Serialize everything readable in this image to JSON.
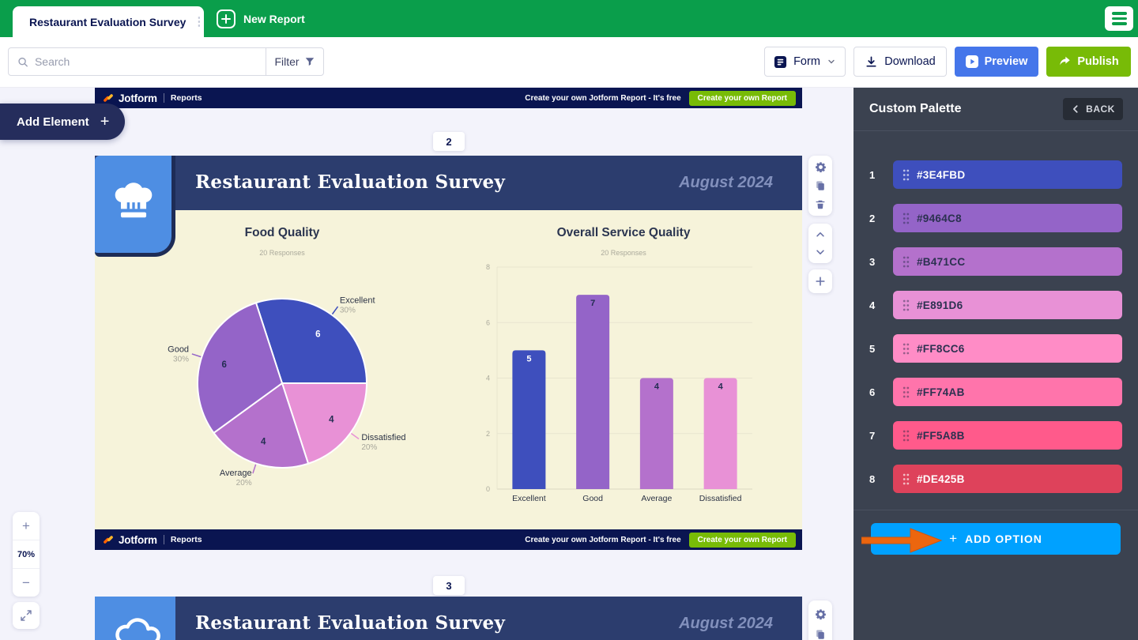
{
  "topbar": {
    "active_tab": "Restaurant Evaluation Survey",
    "new_tab": "New Report"
  },
  "toolbar": {
    "search_placeholder": "Search",
    "filter_label": "Filter",
    "form_label": "Form",
    "download_label": "Download",
    "preview_label": "Preview",
    "publish_label": "Publish"
  },
  "left_rail": {
    "add_element_label": "Add Element",
    "zoom_level": "70%"
  },
  "icons": {
    "plus": "+",
    "minus": "−",
    "dots_menu": "⋮"
  },
  "palette": {
    "title": "Custom Palette",
    "back_label": "BACK",
    "add_option_plus": "+",
    "add_option_label": "ADD OPTION",
    "colors": [
      {
        "n": "1",
        "hex": "#3E4FBD",
        "light_text": true
      },
      {
        "n": "2",
        "hex": "#9464C8",
        "light_text": false
      },
      {
        "n": "3",
        "hex": "#B471CC",
        "light_text": false
      },
      {
        "n": "4",
        "hex": "#E891D6",
        "light_text": false
      },
      {
        "n": "5",
        "hex": "#FF8CC6",
        "light_text": false
      },
      {
        "n": "6",
        "hex": "#FF74AB",
        "light_text": false
      },
      {
        "n": "7",
        "hex": "#FF5A8B",
        "light_text": false
      },
      {
        "n": "8",
        "hex": "#DE425B",
        "light_text": true
      }
    ]
  },
  "canvas": {
    "brand_name": "Jotform",
    "brand_section": "Reports",
    "promo_text": "Create your own Jotform Report - It's free",
    "promo_button": "Create your own Report",
    "page2_number": "2",
    "page3_number": "3",
    "report_title": "Restaurant Evaluation Survey",
    "report_date": "August 2024"
  },
  "chart_data": [
    {
      "type": "pie",
      "title": "Food Quality",
      "subtitle": "20 Responses",
      "total_responses": 20,
      "start_angle_deg": -18,
      "segments": [
        {
          "label": "Excellent",
          "value": 6,
          "pct": "30%",
          "color": "#3E4FBD",
          "value_color": "#FFFFFF"
        },
        {
          "label": "Dissatisfied",
          "value": 4,
          "pct": "20%",
          "color": "#E891D6",
          "value_color": "#232D52"
        },
        {
          "label": "Average",
          "value": 4,
          "pct": "20%",
          "color": "#B471CC",
          "value_color": "#232D52"
        },
        {
          "label": "Good",
          "value": 6,
          "pct": "30%",
          "color": "#9464C8",
          "value_color": "#232D52"
        }
      ]
    },
    {
      "type": "bar",
      "title": "Overall Service Quality",
      "subtitle": "20 Responses",
      "total_responses": 20,
      "categories": [
        "Excellent",
        "Good",
        "Average",
        "Dissatisfied"
      ],
      "values": [
        5,
        7,
        4,
        4
      ],
      "colors": [
        "#3E4FBD",
        "#9464C8",
        "#B471CC",
        "#E891D6"
      ],
      "value_label_colors": [
        "#FFFFFF",
        "#232D52",
        "#232D52",
        "#232D52"
      ],
      "ylim": [
        0,
        8
      ],
      "yticks": [
        0,
        2,
        4,
        6,
        8
      ],
      "grid": true,
      "legend": "none"
    }
  ]
}
